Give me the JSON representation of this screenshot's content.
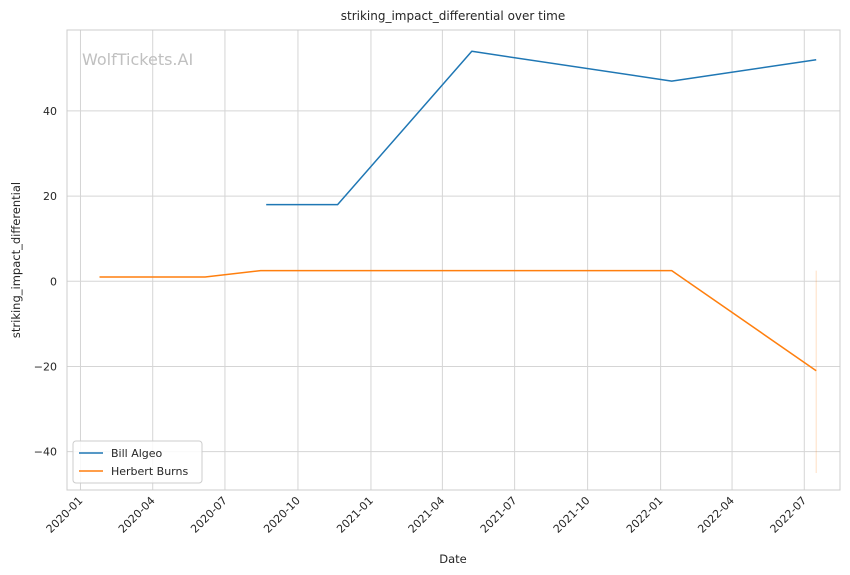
{
  "chart_data": {
    "type": "line",
    "title": "striking_impact_differential over time",
    "xlabel": "Date",
    "ylabel": "striking_impact_differential",
    "watermark": "WolfTickets.AI",
    "grid": true,
    "legend_position": "lower-left",
    "xlim": [
      "2019-12-15",
      "2022-08-15"
    ],
    "ylim": [
      -49,
      59
    ],
    "x_ticks": [
      {
        "date": "2020-01-01",
        "label": "2020-01"
      },
      {
        "date": "2020-04-01",
        "label": "2020-04"
      },
      {
        "date": "2020-07-01",
        "label": "2020-07"
      },
      {
        "date": "2020-10-01",
        "label": "2020-10"
      },
      {
        "date": "2021-01-01",
        "label": "2021-01"
      },
      {
        "date": "2021-04-01",
        "label": "2021-04"
      },
      {
        "date": "2021-07-01",
        "label": "2021-07"
      },
      {
        "date": "2021-10-01",
        "label": "2021-10"
      },
      {
        "date": "2022-01-01",
        "label": "2022-01"
      },
      {
        "date": "2022-04-01",
        "label": "2022-04"
      },
      {
        "date": "2022-07-01",
        "label": "2022-07"
      }
    ],
    "y_ticks": [
      {
        "value": -40,
        "label": "−40"
      },
      {
        "value": -20,
        "label": "−20"
      },
      {
        "value": 0,
        "label": "0"
      },
      {
        "value": 20,
        "label": "20"
      },
      {
        "value": 40,
        "label": "40"
      }
    ],
    "series": [
      {
        "name": "Bill Algeo",
        "color": "#1f77b4",
        "points": [
          {
            "x": "2020-08-22",
            "y": 18
          },
          {
            "x": "2020-11-20",
            "y": 18
          },
          {
            "x": "2021-05-08",
            "y": 54
          },
          {
            "x": "2022-01-15",
            "y": 47
          },
          {
            "x": "2022-07-16",
            "y": 52
          }
        ]
      },
      {
        "name": "Herbert Burns",
        "color": "#ff7f0e",
        "points": [
          {
            "x": "2020-01-25",
            "y": 1
          },
          {
            "x": "2020-06-06",
            "y": 1
          },
          {
            "x": "2020-08-15",
            "y": 2.5
          },
          {
            "x": "2022-01-15",
            "y": 2.5
          },
          {
            "x": "2022-07-16",
            "y": -21
          }
        ],
        "error_bar": {
          "x": "2022-07-16",
          "low": -45,
          "high": 2.5
        }
      }
    ]
  }
}
